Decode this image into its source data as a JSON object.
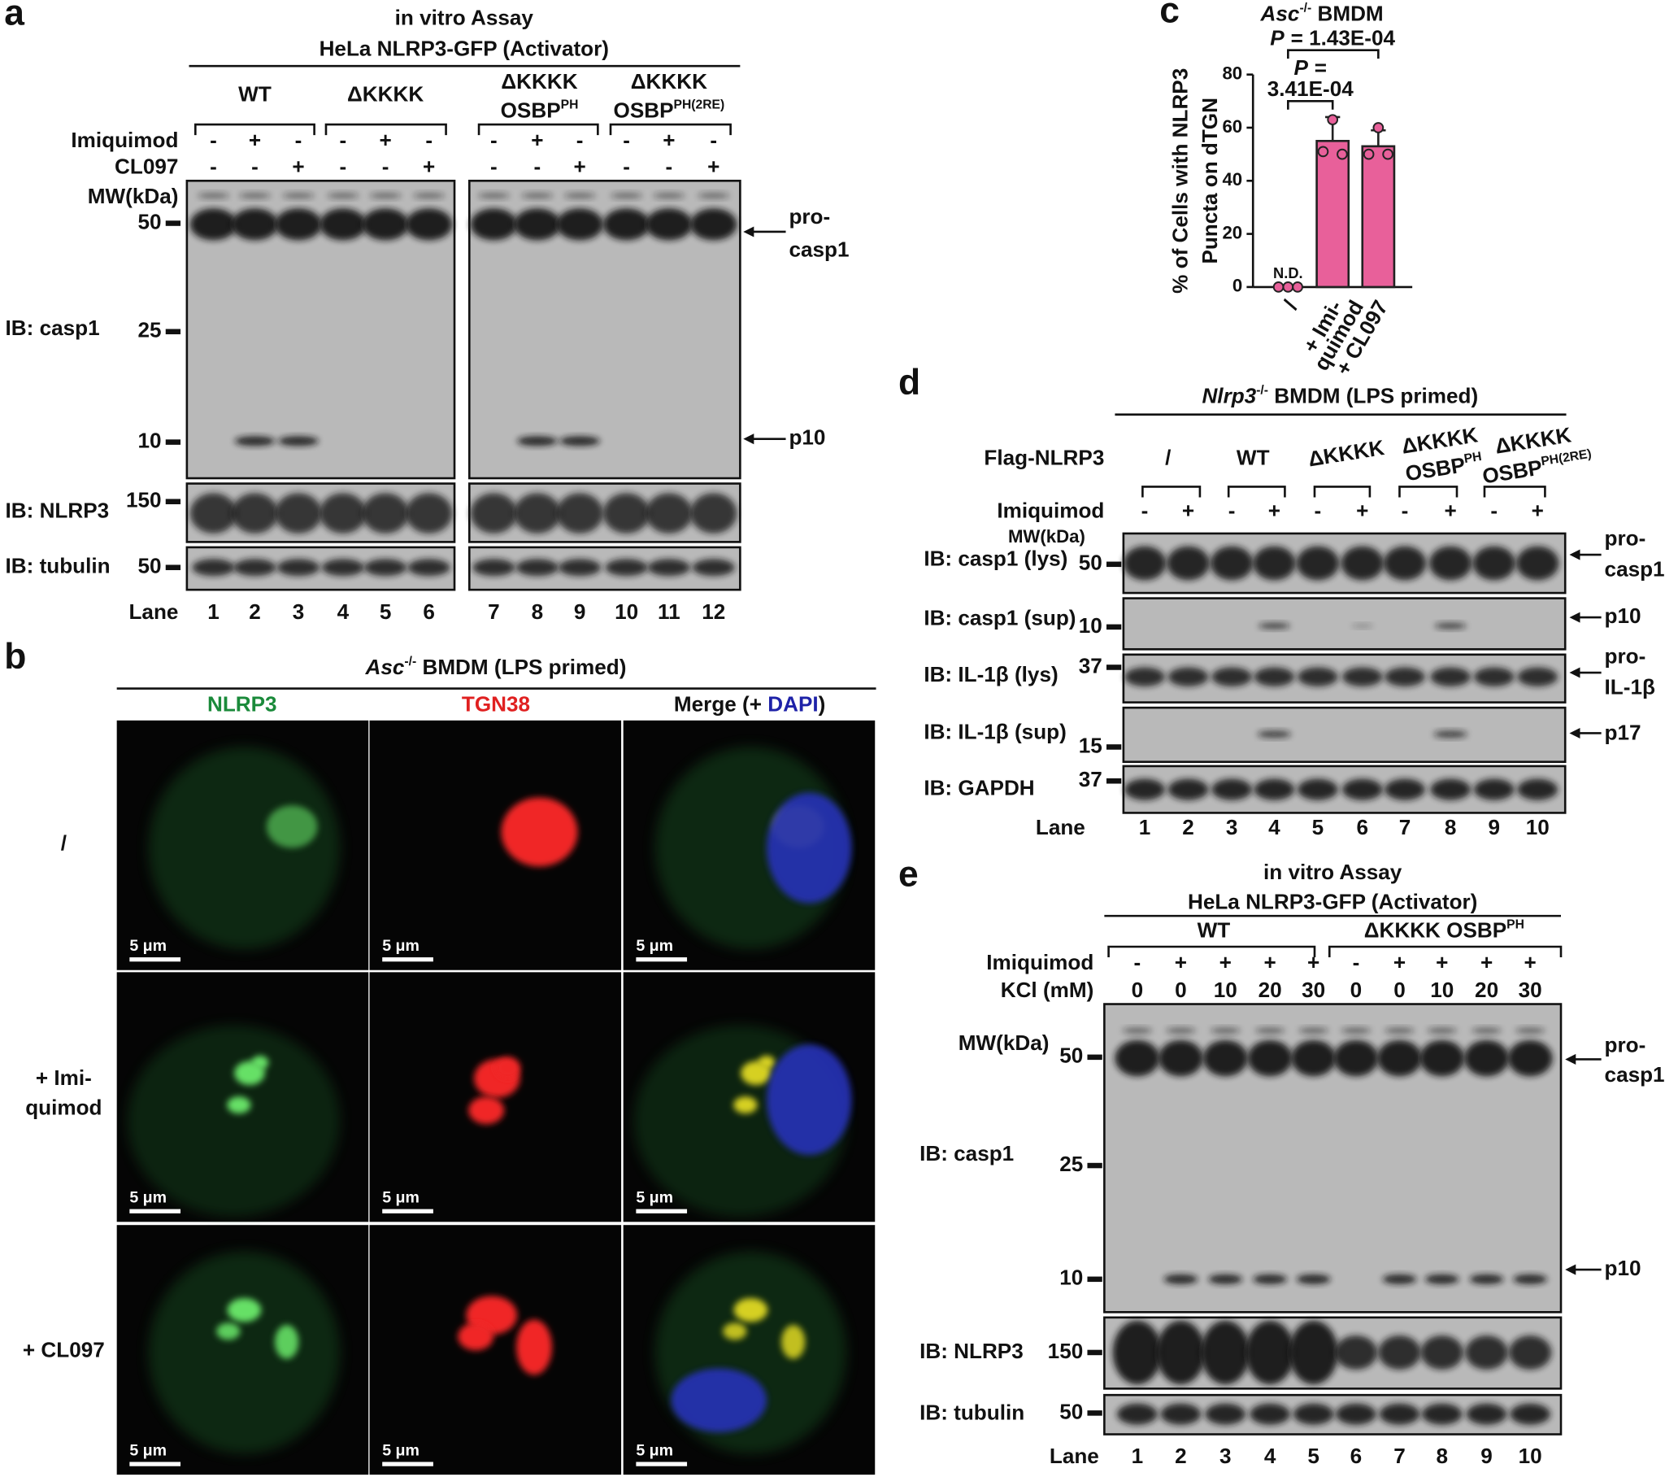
{
  "panel_a": {
    "letter": "a",
    "title": "in vitro Assay",
    "subtitle": "HeLa NLRP3-GFP (Activator)",
    "groups": [
      {
        "lines": [
          "WT"
        ]
      },
      {
        "lines": [
          "ΔKKKK"
        ]
      },
      {
        "lines": [
          "ΔKKKK",
          "OSBP"
        ],
        "sup": "PH"
      },
      {
        "lines": [
          "ΔKKKK",
          "OSBP"
        ],
        "sup": "PH(2RE)"
      }
    ],
    "treatments": [
      {
        "label": "Imiquimod",
        "signs": [
          "-",
          "+",
          "-",
          "-",
          "+",
          "-",
          "-",
          "+",
          "-",
          "-",
          "+",
          "-"
        ]
      },
      {
        "label": "CL097",
        "signs": [
          "-",
          "-",
          "+",
          "-",
          "-",
          "+",
          "-",
          "-",
          "+",
          "-",
          "-",
          "+"
        ]
      }
    ],
    "mw_label": "MW(kDa)",
    "blots": [
      {
        "label": "IB: casp1",
        "markers": [
          "50",
          "25",
          "10"
        ]
      },
      {
        "label": "IB: NLRP3",
        "markers": [
          "150"
        ]
      },
      {
        "label": "IB: tubulin",
        "markers": [
          "50"
        ]
      }
    ],
    "arrows": [
      {
        "lines": [
          "pro-",
          "casp1"
        ]
      },
      {
        "lines": [
          "p10"
        ]
      }
    ],
    "lane_label": "Lane",
    "lanes": [
      "1",
      "2",
      "3",
      "4",
      "5",
      "6",
      "7",
      "8",
      "9",
      "10",
      "11",
      "12"
    ]
  },
  "panel_b": {
    "letter": "b",
    "title": {
      "italic": "Asc",
      "sup": "-/-",
      "rest": " BMDM (LPS primed)"
    },
    "columns": [
      {
        "text": "NLRP3"
      },
      {
        "text": "TGN38"
      },
      {
        "text": "Merge (+ ",
        "blue": "DAPI",
        "after": ")"
      }
    ],
    "rows": [
      {
        "lines": [
          "/"
        ]
      },
      {
        "lines": [
          "+ Imi-",
          "quimod"
        ]
      },
      {
        "lines": [
          "+ CL097"
        ]
      }
    ],
    "scale_bars": [
      "5 μm",
      "5 μm",
      "5 μm",
      "5 μm",
      "5 μm",
      "5 μm",
      "5 μm",
      "5 μm",
      "5 μm"
    ]
  },
  "panel_c": {
    "letter": "c",
    "title": {
      "italic": "Asc",
      "sup": "-/-",
      "rest": " BMDM"
    },
    "y_label": [
      "% of Cells with NLRP3",
      "Puncta on dTGN"
    ],
    "ylim": [
      0,
      80
    ],
    "yticks": [
      0,
      20,
      40,
      60,
      80
    ],
    "categories": [
      [
        "/"
      ],
      [
        "+ Imi-",
        "quimod"
      ],
      [
        "+ CL097"
      ]
    ],
    "values": [
      0,
      55,
      53
    ],
    "errors": [
      null,
      9,
      6
    ],
    "points": [
      [
        0,
        0,
        0
      ],
      [
        51,
        63,
        50
      ],
      [
        50,
        60,
        50
      ]
    ],
    "color": "#e8609a",
    "annotation": "N.D.",
    "comparisons": [
      {
        "italic": "P",
        "lines": [
          "= 1.43E-04"
        ]
      },
      {
        "italic": "P",
        "lines": [
          "=",
          "3.41E-04"
        ]
      }
    ]
  },
  "panel_d": {
    "letter": "d",
    "title": {
      "italic": "Nlrp3",
      "sup": "-/-",
      "rest": " BMDM (LPS primed)"
    },
    "row_label": "Flag-NLRP3",
    "groups": [
      {
        "lines": [
          "/"
        ]
      },
      {
        "lines": [
          "WT"
        ]
      },
      {
        "lines": [
          "ΔKKKK"
        ]
      },
      {
        "lines": [
          "ΔKKKK",
          "OSBP"
        ],
        "sup": "PH"
      },
      {
        "lines": [
          "ΔKKKK",
          "OSBP"
        ],
        "sup": "PH(2RE)"
      }
    ],
    "treatments": [
      {
        "label": "Imiquimod",
        "signs": [
          "-",
          "+",
          "-",
          "+",
          "-",
          "+",
          "-",
          "+",
          "-",
          "+"
        ]
      }
    ],
    "mw_label": "MW(kDa)",
    "blots": [
      {
        "label": "IB: casp1 (lys)",
        "markers": [
          "50"
        ]
      },
      {
        "label": "IB: casp1 (sup)",
        "markers": [
          "10"
        ]
      },
      {
        "label": "IB: IL-1β (lys)",
        "markers": [
          "37"
        ]
      },
      {
        "label": "IB: IL-1β (sup)",
        "markers": [
          "15"
        ]
      },
      {
        "label": "IB: GAPDH",
        "markers": [
          "37"
        ]
      }
    ],
    "arrows": [
      {
        "lines": [
          "pro-",
          "casp1"
        ]
      },
      {
        "lines": [
          "p10"
        ]
      },
      {
        "lines": [
          "pro-",
          "IL-1β"
        ]
      },
      {
        "lines": [
          "p17"
        ]
      }
    ],
    "lane_label": "Lane",
    "lanes": [
      "1",
      "2",
      "3",
      "4",
      "5",
      "6",
      "7",
      "8",
      "9",
      "10"
    ]
  },
  "panel_e": {
    "letter": "e",
    "title": "in vitro Assay",
    "subtitle": "HeLa NLRP3-GFP (Activator)",
    "groups": [
      {
        "lines": [
          "WT"
        ]
      },
      {
        "lines": [
          "ΔKKKK OSBP"
        ],
        "sup": "PH"
      }
    ],
    "treatments": [
      {
        "label": "Imiquimod",
        "signs": [
          "-",
          "+",
          "+",
          "+",
          "+",
          "-",
          "+",
          "+",
          "+",
          "+"
        ]
      },
      {
        "label": "KCl (mM)",
        "signs": [
          "0",
          "0",
          "10",
          "20",
          "30",
          "0",
          "0",
          "10",
          "20",
          "30"
        ]
      }
    ],
    "mw_label": "MW(kDa)",
    "blots": [
      {
        "label": "IB: casp1",
        "markers": [
          "50",
          "25",
          "10"
        ]
      },
      {
        "label": "IB: NLRP3",
        "markers": [
          "150"
        ]
      },
      {
        "label": "IB: tubulin",
        "markers": [
          "50"
        ]
      }
    ],
    "arrows": [
      {
        "lines": [
          "pro-",
          "casp1"
        ]
      },
      {
        "lines": [
          "p10"
        ]
      }
    ],
    "lane_label": "Lane",
    "lanes": [
      "1",
      "2",
      "3",
      "4",
      "5",
      "6",
      "7",
      "8",
      "9",
      "10"
    ]
  }
}
